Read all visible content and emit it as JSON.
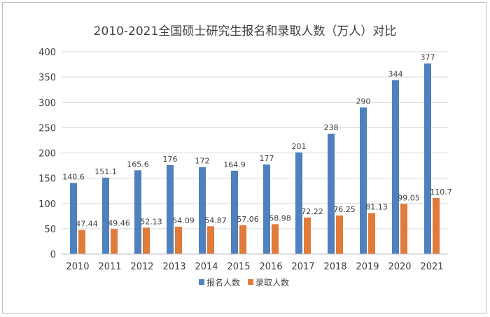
{
  "chart_data": {
    "type": "bar",
    "title": "2010-2021全国硕士研究生报名和录取人数（万人）对比",
    "xlabel": "",
    "ylabel": "",
    "categories": [
      "2010",
      "2011",
      "2012",
      "2013",
      "2014",
      "2015",
      "2016",
      "2017",
      "2018",
      "2019",
      "2020",
      "2021"
    ],
    "series": [
      {
        "name": "报名人数",
        "color": "#4e81bd",
        "values": [
          140.6,
          151.1,
          165.6,
          176,
          172,
          164.9,
          177,
          201,
          238,
          290,
          344,
          377
        ],
        "labels": [
          "140.6",
          "151.1",
          "165.6",
          "176",
          "172",
          "164.9",
          "177",
          "201",
          "238",
          "290",
          "344",
          "377"
        ]
      },
      {
        "name": "录取人数",
        "color": "#e07b39",
        "values": [
          47.44,
          49.46,
          52.13,
          54.09,
          54.87,
          57.06,
          58.98,
          72.22,
          76.25,
          81.13,
          99.05,
          110.7
        ],
        "labels": [
          "47.44",
          "49.46",
          "52.13",
          "54.09",
          "54.87",
          "57.06",
          "58.98",
          "72.22",
          "76.25",
          "81.13",
          "99.05",
          "110.7"
        ]
      }
    ],
    "ylim": [
      0,
      400
    ],
    "yticks": [
      "0",
      "50",
      "100",
      "150",
      "200",
      "250",
      "300",
      "350",
      "400"
    ],
    "grid": true,
    "legend_position": "bottom"
  }
}
